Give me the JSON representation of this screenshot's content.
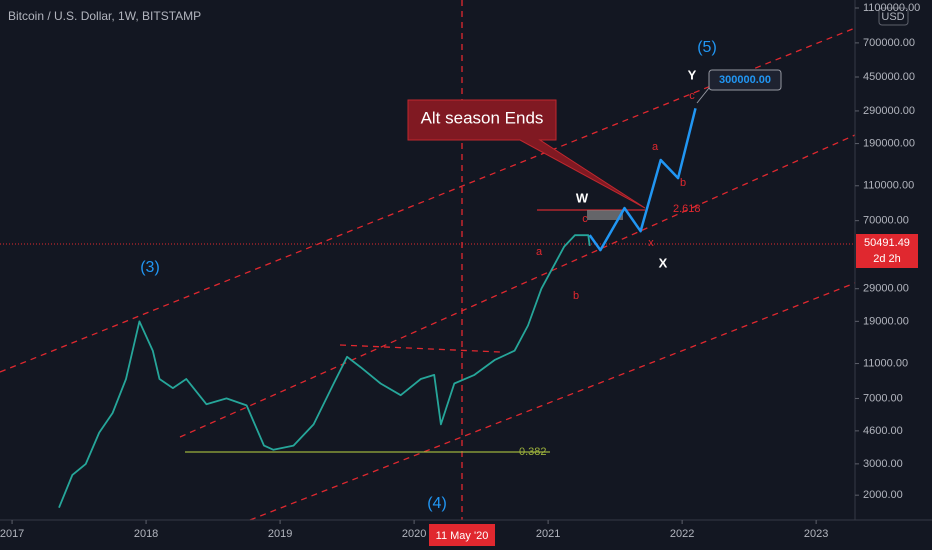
{
  "chart_data": {
    "type": "line",
    "title": "Bitcoin / U.S. Dollar, 1W, BITSTAMP",
    "currency": "USD",
    "log_scale": true,
    "xlim": [
      2016.91,
      2023.29
    ],
    "xticks": [
      2017,
      2018,
      2019,
      2020,
      2021,
      2022,
      2023
    ],
    "ylim": [
      1450,
      1220000
    ],
    "yticks": [
      {
        "value": 1100000,
        "label": "1100000.00"
      },
      {
        "value": 700000,
        "label": "700000.00"
      },
      {
        "value": 450000,
        "label": "450000.00"
      },
      {
        "value": 290000,
        "label": "290000.00"
      },
      {
        "value": 190000,
        "label": "190000.00"
      },
      {
        "value": 110000,
        "label": "110000.00"
      },
      {
        "value": 70000,
        "label": "70000.00"
      },
      {
        "value": 29000,
        "label": "29000.00"
      },
      {
        "value": 19000,
        "label": "19000.00"
      },
      {
        "value": 11000,
        "label": "11000.00"
      },
      {
        "value": 7000,
        "label": "7000.00"
      },
      {
        "value": 4600,
        "label": "4600.00"
      },
      {
        "value": 3000,
        "label": "3000.00"
      },
      {
        "value": 2000,
        "label": "2000.00"
      }
    ],
    "series": [
      {
        "color": "#26a69a",
        "x": [
          2017.35,
          2017.45,
          2017.55,
          2017.65,
          2017.75,
          2017.85,
          2017.95,
          2018.05,
          2018.1,
          2018.2,
          2018.3,
          2018.45,
          2018.6,
          2018.75,
          2018.88,
          2018.95,
          2019.1,
          2019.25,
          2019.4,
          2019.5,
          2019.6,
          2019.75,
          2019.9,
          2020.05,
          2020.15,
          2020.2,
          2020.3,
          2020.45,
          2020.6,
          2020.75,
          2020.85,
          2020.95,
          2021.05,
          2021.12,
          2021.2,
          2021.3,
          2021.31
        ],
        "values": [
          1700,
          2600,
          3000,
          4500,
          5800,
          9000,
          19000,
          13000,
          9000,
          8000,
          9000,
          6500,
          7000,
          6400,
          3800,
          3600,
          3800,
          5000,
          8500,
          12000,
          10500,
          8500,
          7300,
          9000,
          9500,
          5000,
          8500,
          9500,
          11500,
          13000,
          18000,
          29000,
          40000,
          50000,
          58000,
          58000,
          50491.49
        ]
      },
      {
        "color": "#2196f3",
        "x": [
          2021.31,
          2021.39,
          2021.57,
          2021.69,
          2021.84,
          2021.97,
          2022.1
        ],
        "values": [
          58100,
          47800,
          82400,
          61100,
          153500,
          121500,
          300000
        ]
      }
    ],
    "current_price_label": "50491.49",
    "countdown": "2d 2h",
    "crosshair_date": "11 May '20",
    "annotations": [
      "(3)",
      "(4)",
      "(5)",
      "W",
      "X",
      "Y",
      "a",
      "b",
      "c",
      "a",
      "b",
      "c",
      "x",
      "Alt season Ends",
      "300000.00",
      "2.618",
      "0.382"
    ]
  }
}
